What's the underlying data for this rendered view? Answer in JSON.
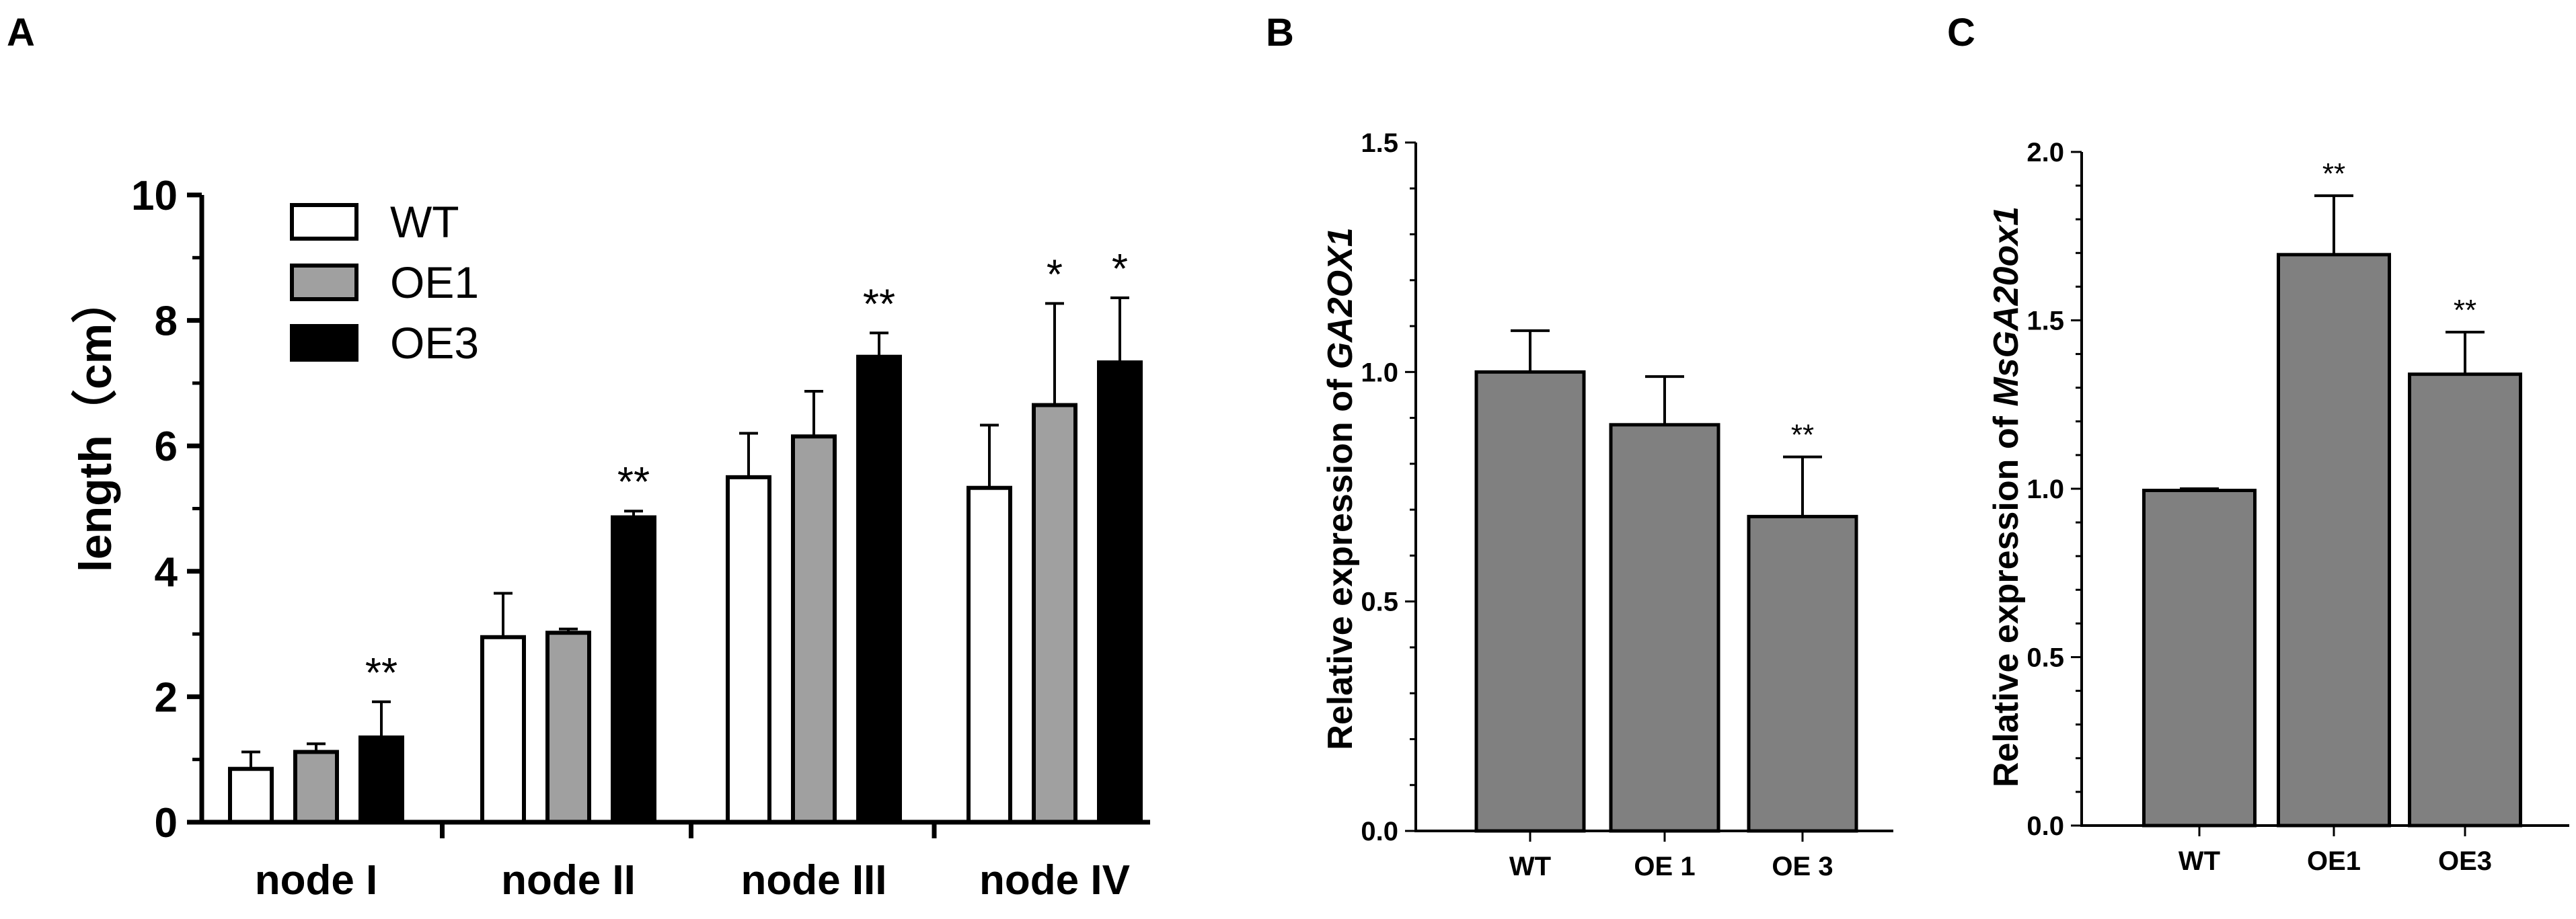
{
  "panel_letters": [
    "A",
    "B",
    "C"
  ],
  "chart_data": [
    {
      "panel": "A",
      "type": "bar",
      "categories": [
        "node I",
        "node II",
        "node III",
        "node IV"
      ],
      "ylabel": "length（cm）",
      "ylim": [
        0,
        10
      ],
      "yticks": [
        "0",
        "2",
        "4",
        "6",
        "8",
        "10"
      ],
      "legend_position": "top-left",
      "series": [
        {
          "name": "WT",
          "values": [
            0.85,
            2.95,
            5.5,
            5.33
          ],
          "errors": [
            0.27,
            0.7,
            0.7,
            1.0
          ],
          "fill": "#ffffff"
        },
        {
          "name": "OE1",
          "values": [
            1.12,
            3.02,
            6.15,
            6.65
          ],
          "errors": [
            0.13,
            0.06,
            0.72,
            1.62
          ],
          "fill": "#a0a0a0"
        },
        {
          "name": "OE3",
          "values": [
            1.35,
            4.86,
            7.42,
            7.33
          ],
          "errors": [
            0.57,
            0.1,
            0.38,
            1.03
          ],
          "fill": "#000000"
        }
      ],
      "annotations": [
        {
          "category": 0,
          "series": 2,
          "label": "**"
        },
        {
          "category": 1,
          "series": 2,
          "label": "**"
        },
        {
          "category": 2,
          "series": 2,
          "label": "**"
        },
        {
          "category": 3,
          "series": 1,
          "label": "*"
        },
        {
          "category": 3,
          "series": 2,
          "label": "*"
        }
      ]
    },
    {
      "panel": "B",
      "type": "bar",
      "categories": [
        "WT",
        "OE 1",
        "OE 3"
      ],
      "ylabel_prefix": "Relative expression of ",
      "ylabel_gene": "GA2OX1",
      "ylim": [
        0,
        1.5
      ],
      "yticks": [
        "0.0",
        "0.5",
        "1.0",
        "1.5"
      ],
      "values": [
        1.0,
        0.885,
        0.685
      ],
      "errors": [
        0.09,
        0.105,
        0.13
      ],
      "bar_color": "#808080",
      "annotations": [
        {
          "category": 2,
          "label": "**"
        }
      ]
    },
    {
      "panel": "C",
      "type": "bar",
      "categories": [
        "WT",
        "OE1",
        "OE3"
      ],
      "ylabel_prefix": "Relative expression of ",
      "ylabel_gene": "MsGA20ox1",
      "ylim": [
        0,
        2.0
      ],
      "yticks": [
        "0.0",
        "0.5",
        "1.0",
        "1.5",
        "2.0"
      ],
      "values": [
        0.995,
        1.695,
        1.34
      ],
      "errors": [
        0.005,
        0.175,
        0.125
      ],
      "bar_color": "#808080",
      "annotations": [
        {
          "category": 1,
          "label": "**"
        },
        {
          "category": 2,
          "label": "**"
        }
      ]
    }
  ]
}
